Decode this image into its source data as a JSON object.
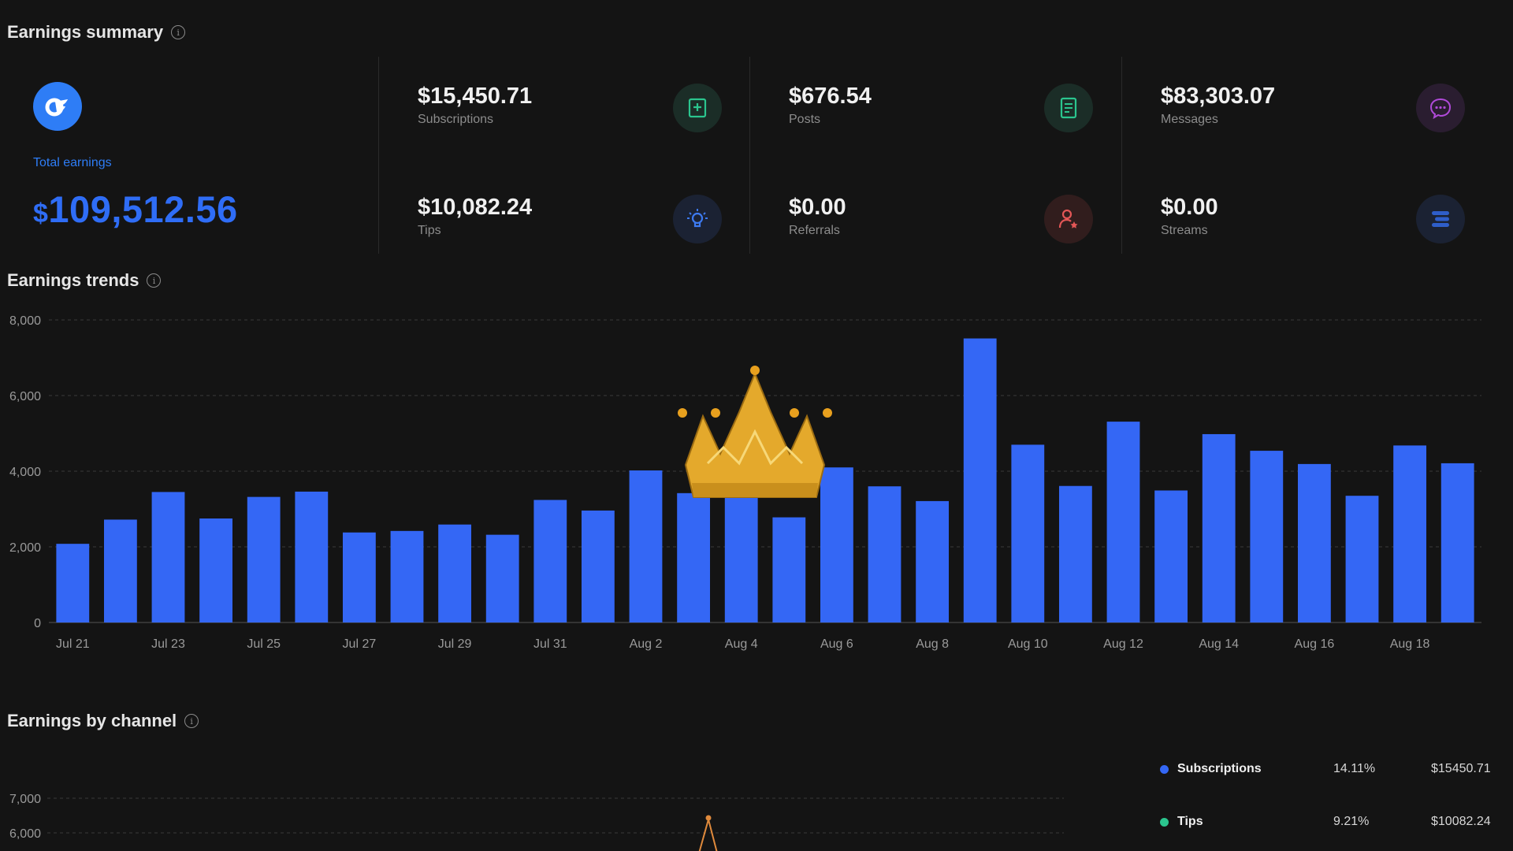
{
  "sections": {
    "summary_title": "Earnings summary",
    "trends_title": "Earnings trends",
    "channel_title": "Earnings by channel"
  },
  "summary": {
    "total_label": "Total earnings",
    "total_currency": "$",
    "total_amount": "109,512.56",
    "metrics": [
      {
        "value": "$15,450.71",
        "label": "Subscriptions",
        "icon": "subscriptions-icon",
        "icon_color": "#2bc58e",
        "icon_bg": "#1b2d27"
      },
      {
        "value": "$676.54",
        "label": "Posts",
        "icon": "posts-icon",
        "icon_color": "#2bc58e",
        "icon_bg": "#1b2d27"
      },
      {
        "value": "$83,303.07",
        "label": "Messages",
        "icon": "messages-icon",
        "icon_color": "#b04ad9",
        "icon_bg": "#2a1d30"
      },
      {
        "value": "$10,082.24",
        "label": "Tips",
        "icon": "tips-icon",
        "icon_color": "#3d7af0",
        "icon_bg": "#1b2233"
      },
      {
        "value": "$0.00",
        "label": "Referrals",
        "icon": "referrals-icon",
        "icon_color": "#e25656",
        "icon_bg": "#311d1d"
      },
      {
        "value": "$0.00",
        "label": "Streams",
        "icon": "streams-icon",
        "icon_color": "#2f5ec9",
        "icon_bg": "#1b2233"
      }
    ]
  },
  "colors": {
    "accent": "#2e7df6",
    "bar": "#3467f5",
    "grid": "#3a3a3a",
    "tips": "#2bc58e",
    "line": "#e08a3c"
  },
  "chart_data": [
    {
      "type": "bar",
      "yticks": [
        "0",
        "2,000",
        "4,000",
        "6,000",
        "8,000"
      ],
      "ylim": [
        0,
        8000
      ],
      "grid": true,
      "xtick_labels": [
        "Jul 21",
        "Jul 23",
        "Jul 25",
        "Jul 27",
        "Jul 29",
        "Jul 31",
        "Aug 2",
        "Aug 4",
        "Aug 6",
        "Aug 8",
        "Aug 10",
        "Aug 12",
        "Aug 14",
        "Aug 16",
        "Aug 18"
      ],
      "categories": [
        "Jul 21",
        "Jul 22",
        "Jul 23",
        "Jul 24",
        "Jul 25",
        "Jul 26",
        "Jul 27",
        "Jul 28",
        "Jul 29",
        "Jul 30",
        "Jul 31",
        "Aug 1",
        "Aug 2",
        "Aug 3",
        "Aug 4",
        "Aug 5",
        "Aug 6",
        "Aug 7",
        "Aug 8",
        "Aug 9",
        "Aug 10",
        "Aug 11",
        "Aug 12",
        "Aug 13",
        "Aug 14",
        "Aug 15",
        "Aug 16",
        "Aug 17",
        "Aug 18",
        "Aug 19"
      ],
      "values": [
        2080,
        2720,
        3450,
        2750,
        3320,
        3460,
        2380,
        2420,
        2590,
        2320,
        3240,
        2960,
        4020,
        3420,
        3590,
        2780,
        4100,
        3600,
        3210,
        7510,
        4700,
        3610,
        5310,
        3490,
        4980,
        4540,
        4190,
        3350,
        4680,
        4210
      ]
    },
    {
      "type": "line",
      "yticks": [
        "6,000",
        "7,000"
      ],
      "grid": true,
      "legend": [
        {
          "name": "Subscriptions",
          "percent": "14.11%",
          "amount": "$15450.71",
          "color": "#3467f5"
        },
        {
          "name": "Tips",
          "percent": "9.21%",
          "amount": "$10082.24",
          "color": "#2bc58e"
        }
      ]
    }
  ]
}
